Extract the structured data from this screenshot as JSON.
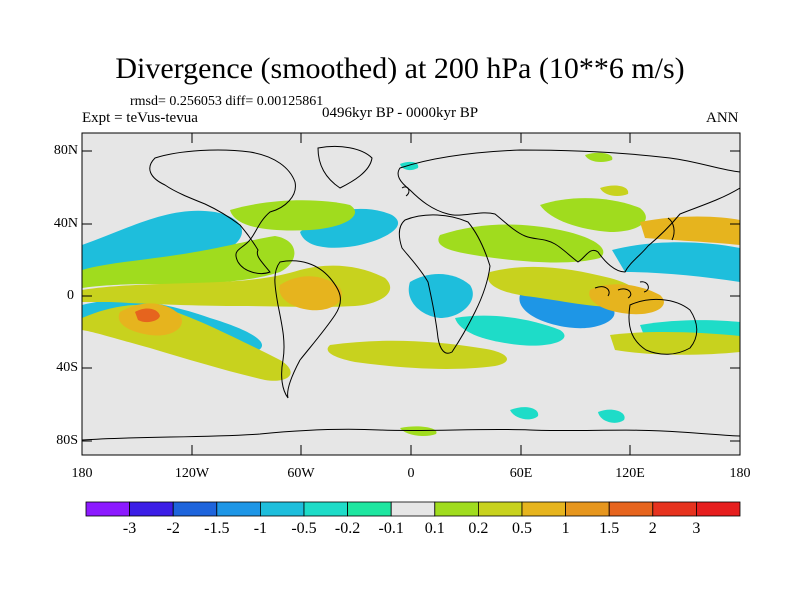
{
  "title": "Divergence (smoothed) at 200 hPa (10**6 m/s)",
  "stats": "rmsd= 0.256053 diff= 0.00125861",
  "experiment": "Expt = teVus-tevua",
  "period": "0496kyr BP - 0000kyr BP",
  "season": "ANN",
  "lat_labels": [
    "80N",
    "40N",
    "0",
    "40S",
    "80S"
  ],
  "lon_labels": [
    "180",
    "120W",
    "60W",
    "0",
    "60E",
    "120E",
    "180"
  ],
  "colorbar": {
    "labels": [
      "-3",
      "-2",
      "-1.5",
      "-1",
      "-0.5",
      "-0.2",
      "-0.1",
      "0.1",
      "0.2",
      "0.5",
      "1",
      "1.5",
      "2",
      "3"
    ],
    "colors": [
      "#8c1aff",
      "#3c1ee6",
      "#1e64dc",
      "#1e96e6",
      "#1ebedc",
      "#1edcc8",
      "#1ee6a0",
      "#e6e6e6",
      "#a0dc1e",
      "#c8d21e",
      "#e6b41e",
      "#e6961e",
      "#e6641e",
      "#e6321e",
      "#e61e1e"
    ]
  },
  "colors": {
    "ocean_bg": "#e6e6e6",
    "coast": "#000000"
  }
}
